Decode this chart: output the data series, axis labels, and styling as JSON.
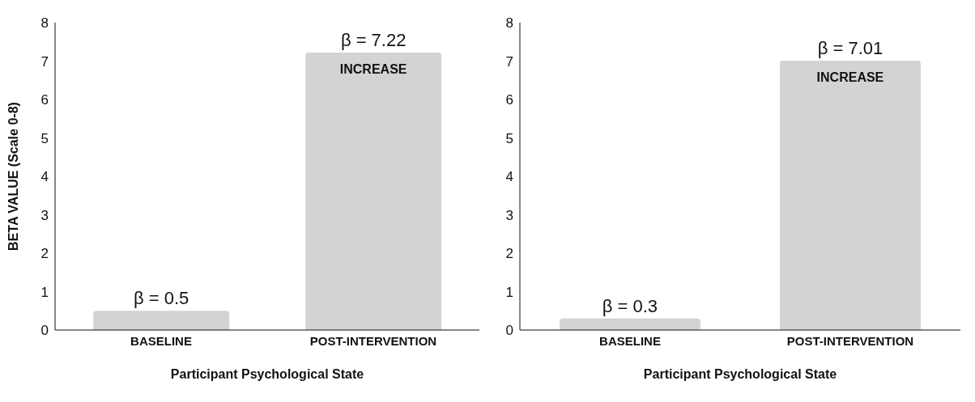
{
  "chart_data": [
    {
      "type": "bar",
      "ylabel": "BETA VALUE (Scale 0-8)",
      "xlabel": "Participant Psychological State",
      "categories": [
        "BASELINE",
        "POST-INTERVENTION"
      ],
      "values": [
        0.5,
        7.22
      ],
      "color": "#d3d3d3",
      "value_labels": [
        "β = 0.5",
        "β = 7.22"
      ],
      "annotations": [
        "INCREASE"
      ],
      "ylim": [
        0,
        8
      ],
      "yticks": [
        0,
        1,
        2,
        3,
        4,
        5,
        6,
        7,
        8
      ],
      "grid": false,
      "legend": false
    },
    {
      "type": "bar",
      "xlabel": "Participant Psychological State",
      "categories": [
        "BASELINE",
        "POST-INTERVENTION"
      ],
      "values": [
        0.3,
        7.01
      ],
      "color": "#d3d3d3",
      "value_labels": [
        "β = 0.3",
        "β = 7.01"
      ],
      "annotations": [
        "INCREASE"
      ],
      "ylim": [
        0,
        8
      ],
      "yticks": [
        0,
        1,
        2,
        3,
        4,
        5,
        6,
        7,
        8
      ],
      "grid": false,
      "legend": false
    }
  ]
}
